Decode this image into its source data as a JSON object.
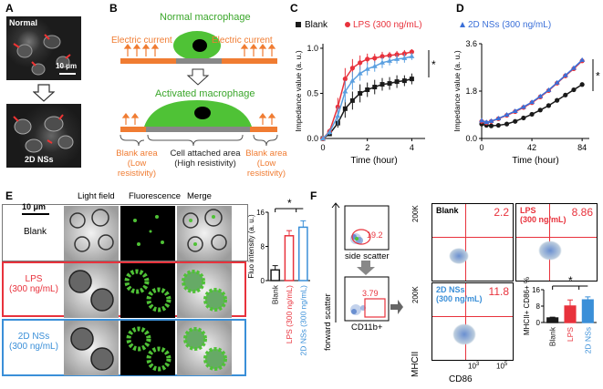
{
  "panels": {
    "A": "A",
    "B": "B",
    "C": "C",
    "D": "D",
    "E": "E",
    "F": "F"
  },
  "panelA": {
    "top_label": "Normal",
    "bottom_label": "2D NSs",
    "scale": "10 μm"
  },
  "panelB": {
    "normal": "Normal macrophage",
    "activated": "Activated macrophage",
    "current_left": "Electric current",
    "current_right": "Electric current",
    "blank_left_1": "Blank area",
    "blank_left_2": "(Low resistivity)",
    "cell_area_1": "Cell attached area",
    "cell_area_2": "(High resistivity)",
    "blank_right_1": "Blank area",
    "blank_right_2": "(Low resistivity)"
  },
  "panelE": {
    "col_headers": [
      "Light field",
      "Fluorescence",
      "Merge"
    ],
    "scale": "10 μm",
    "row_blank": "Blank",
    "row_lps_1": "LPS",
    "row_lps_2": "(300 ng/mL)",
    "row_ns_1": "2D NSs",
    "row_ns_2": "(300 ng/mL)"
  },
  "panelF": {
    "gate_pct": "19.2",
    "side_scatter": "side scatter",
    "forward_scatter": "forward scatter",
    "cd11b_pct": "3.79",
    "cd11b_label": "CD11b+",
    "blank_label": "Blank",
    "blank_val": "2.2",
    "lps_label_1": "LPS",
    "lps_label_2": "(300 ng/mL)",
    "lps_val": "8.86",
    "ns_label_1": "2D NSs",
    "ns_label_2": "(300 ng/mL)",
    "ns_val": "11.8",
    "ylab": "MHCII",
    "xlab": "CD86",
    "y_tick": "200K",
    "x_tick_1": "10",
    "x_tick_1_exp": "3",
    "x_tick_2": "10",
    "x_tick_2_exp": "5"
  },
  "colors": {
    "blank": "#1a1a1a",
    "lps": "#e8323c",
    "ns": "#3a8fd8",
    "orange": "#f07c32",
    "green": "#4fc236"
  },
  "chart_data": [
    {
      "id": "C",
      "type": "line",
      "legend": [
        "Blank",
        "LPS (300 ng/mL)"
      ],
      "xlabel": "Time (hour)",
      "ylabel": "Impedance value (a. u.)",
      "xlim": [
        0,
        4.6
      ],
      "ylim": [
        0,
        1.05
      ],
      "xticks": [
        0,
        2,
        4
      ],
      "yticks": [
        0.0,
        0.5,
        1.0
      ],
      "annotation": "*",
      "series": [
        {
          "name": "Blank",
          "color": "#1a1a1a",
          "x": [
            0,
            0.3,
            0.67,
            1.0,
            1.33,
            1.67,
            2.0,
            2.33,
            2.67,
            3.0,
            3.33,
            3.67,
            4.0
          ],
          "y": [
            0.0,
            0.05,
            0.17,
            0.33,
            0.42,
            0.5,
            0.54,
            0.57,
            0.6,
            0.61,
            0.63,
            0.64,
            0.66
          ],
          "err": [
            0,
            0.02,
            0.05,
            0.1,
            0.1,
            0.1,
            0.08,
            0.08,
            0.07,
            0.07,
            0.07,
            0.06,
            0.06
          ]
        },
        {
          "name": "LPS (300 ng/mL)",
          "color": "#e8323c",
          "x": [
            0,
            0.3,
            0.67,
            1.0,
            1.33,
            1.67,
            2.0,
            2.33,
            2.67,
            3.0,
            3.33,
            3.67,
            4.0
          ],
          "y": [
            0.0,
            0.08,
            0.35,
            0.66,
            0.78,
            0.84,
            0.88,
            0.89,
            0.91,
            0.92,
            0.93,
            0.94,
            0.96
          ],
          "err": [
            0,
            0.03,
            0.1,
            0.12,
            0.1,
            0.08,
            0.06,
            0.05,
            0.05,
            0.04,
            0.04,
            0.04,
            0.03
          ]
        },
        {
          "name": "2D NSs (300 ng/mL)",
          "color": "#5a9fe0",
          "x": [
            0,
            0.3,
            0.67,
            1.0,
            1.33,
            1.67,
            2.0,
            2.33,
            2.67,
            3.0,
            3.33,
            3.67,
            4.0
          ],
          "y": [
            0.0,
            0.07,
            0.25,
            0.52,
            0.64,
            0.72,
            0.77,
            0.8,
            0.84,
            0.86,
            0.88,
            0.89,
            0.91
          ],
          "err": [
            0,
            0.03,
            0.1,
            0.12,
            0.1,
            0.08,
            0.07,
            0.06,
            0.06,
            0.05,
            0.05,
            0.05,
            0.04
          ]
        }
      ]
    },
    {
      "id": "D",
      "type": "line",
      "legend": [
        "2D NSs (300 ng/mL)"
      ],
      "xlabel": "Time (hour)",
      "ylabel": "Impedance value (a. u.)",
      "xlim": [
        0,
        90
      ],
      "ylim": [
        0,
        3.6
      ],
      "xticks": [
        0,
        42,
        84
      ],
      "yticks": [
        0.0,
        1.8,
        3.6
      ],
      "annotation": "*",
      "series": [
        {
          "name": "Blank",
          "color": "#1a1a1a",
          "x": [
            0,
            4,
            8,
            14,
            21,
            28,
            35,
            42,
            49,
            56,
            63,
            70,
            77,
            84
          ],
          "y": [
            0.55,
            0.5,
            0.48,
            0.5,
            0.55,
            0.65,
            0.78,
            0.92,
            1.08,
            1.25,
            1.45,
            1.65,
            1.85,
            2.05
          ]
        },
        {
          "name": "LPS (300 ng/mL)",
          "color": "#e8323c",
          "x": [
            0,
            4,
            8,
            14,
            21,
            28,
            35,
            42,
            49,
            56,
            63,
            70,
            77,
            84
          ],
          "y": [
            0.65,
            0.6,
            0.65,
            0.75,
            0.88,
            1.02,
            1.18,
            1.36,
            1.58,
            1.82,
            2.1,
            2.38,
            2.65,
            2.95
          ]
        },
        {
          "name": "2D NSs (300 ng/mL)",
          "color": "#3a6fd8",
          "x": [
            0,
            4,
            8,
            14,
            21,
            28,
            35,
            42,
            49,
            56,
            63,
            70,
            77,
            84
          ],
          "y": [
            0.68,
            0.62,
            0.66,
            0.76,
            0.9,
            1.04,
            1.2,
            1.38,
            1.6,
            1.84,
            2.12,
            2.4,
            2.68,
            2.98
          ]
        }
      ]
    },
    {
      "id": "E",
      "type": "bar",
      "categories": [
        "Blank",
        "LPS (300 ng/mL)",
        "2D NSs (300 ng/mL)"
      ],
      "values": [
        2.5,
        10.5,
        12.5
      ],
      "err": [
        1.0,
        1.2,
        1.5
      ],
      "colors": [
        "#1a1a1a",
        "#e8323c",
        "#3a8fd8"
      ],
      "ylabel": "Fluo intensity (a. u.)",
      "ylim": [
        0,
        16
      ],
      "yticks": [
        0,
        8,
        16
      ],
      "annotation": "*"
    },
    {
      "id": "F",
      "type": "bar",
      "categories": [
        "Blank",
        "LPS",
        "2D NSs"
      ],
      "values": [
        2.2,
        8.0,
        11.0
      ],
      "err": [
        0.4,
        3.0,
        1.5
      ],
      "colors": [
        "#1a1a1a",
        "#e8323c",
        "#3a8fd8"
      ],
      "ylabel": "MHCII+ CD86+ %",
      "ylim": [
        0,
        16
      ],
      "yticks": [
        0,
        8,
        16
      ],
      "annotation": "*"
    }
  ]
}
